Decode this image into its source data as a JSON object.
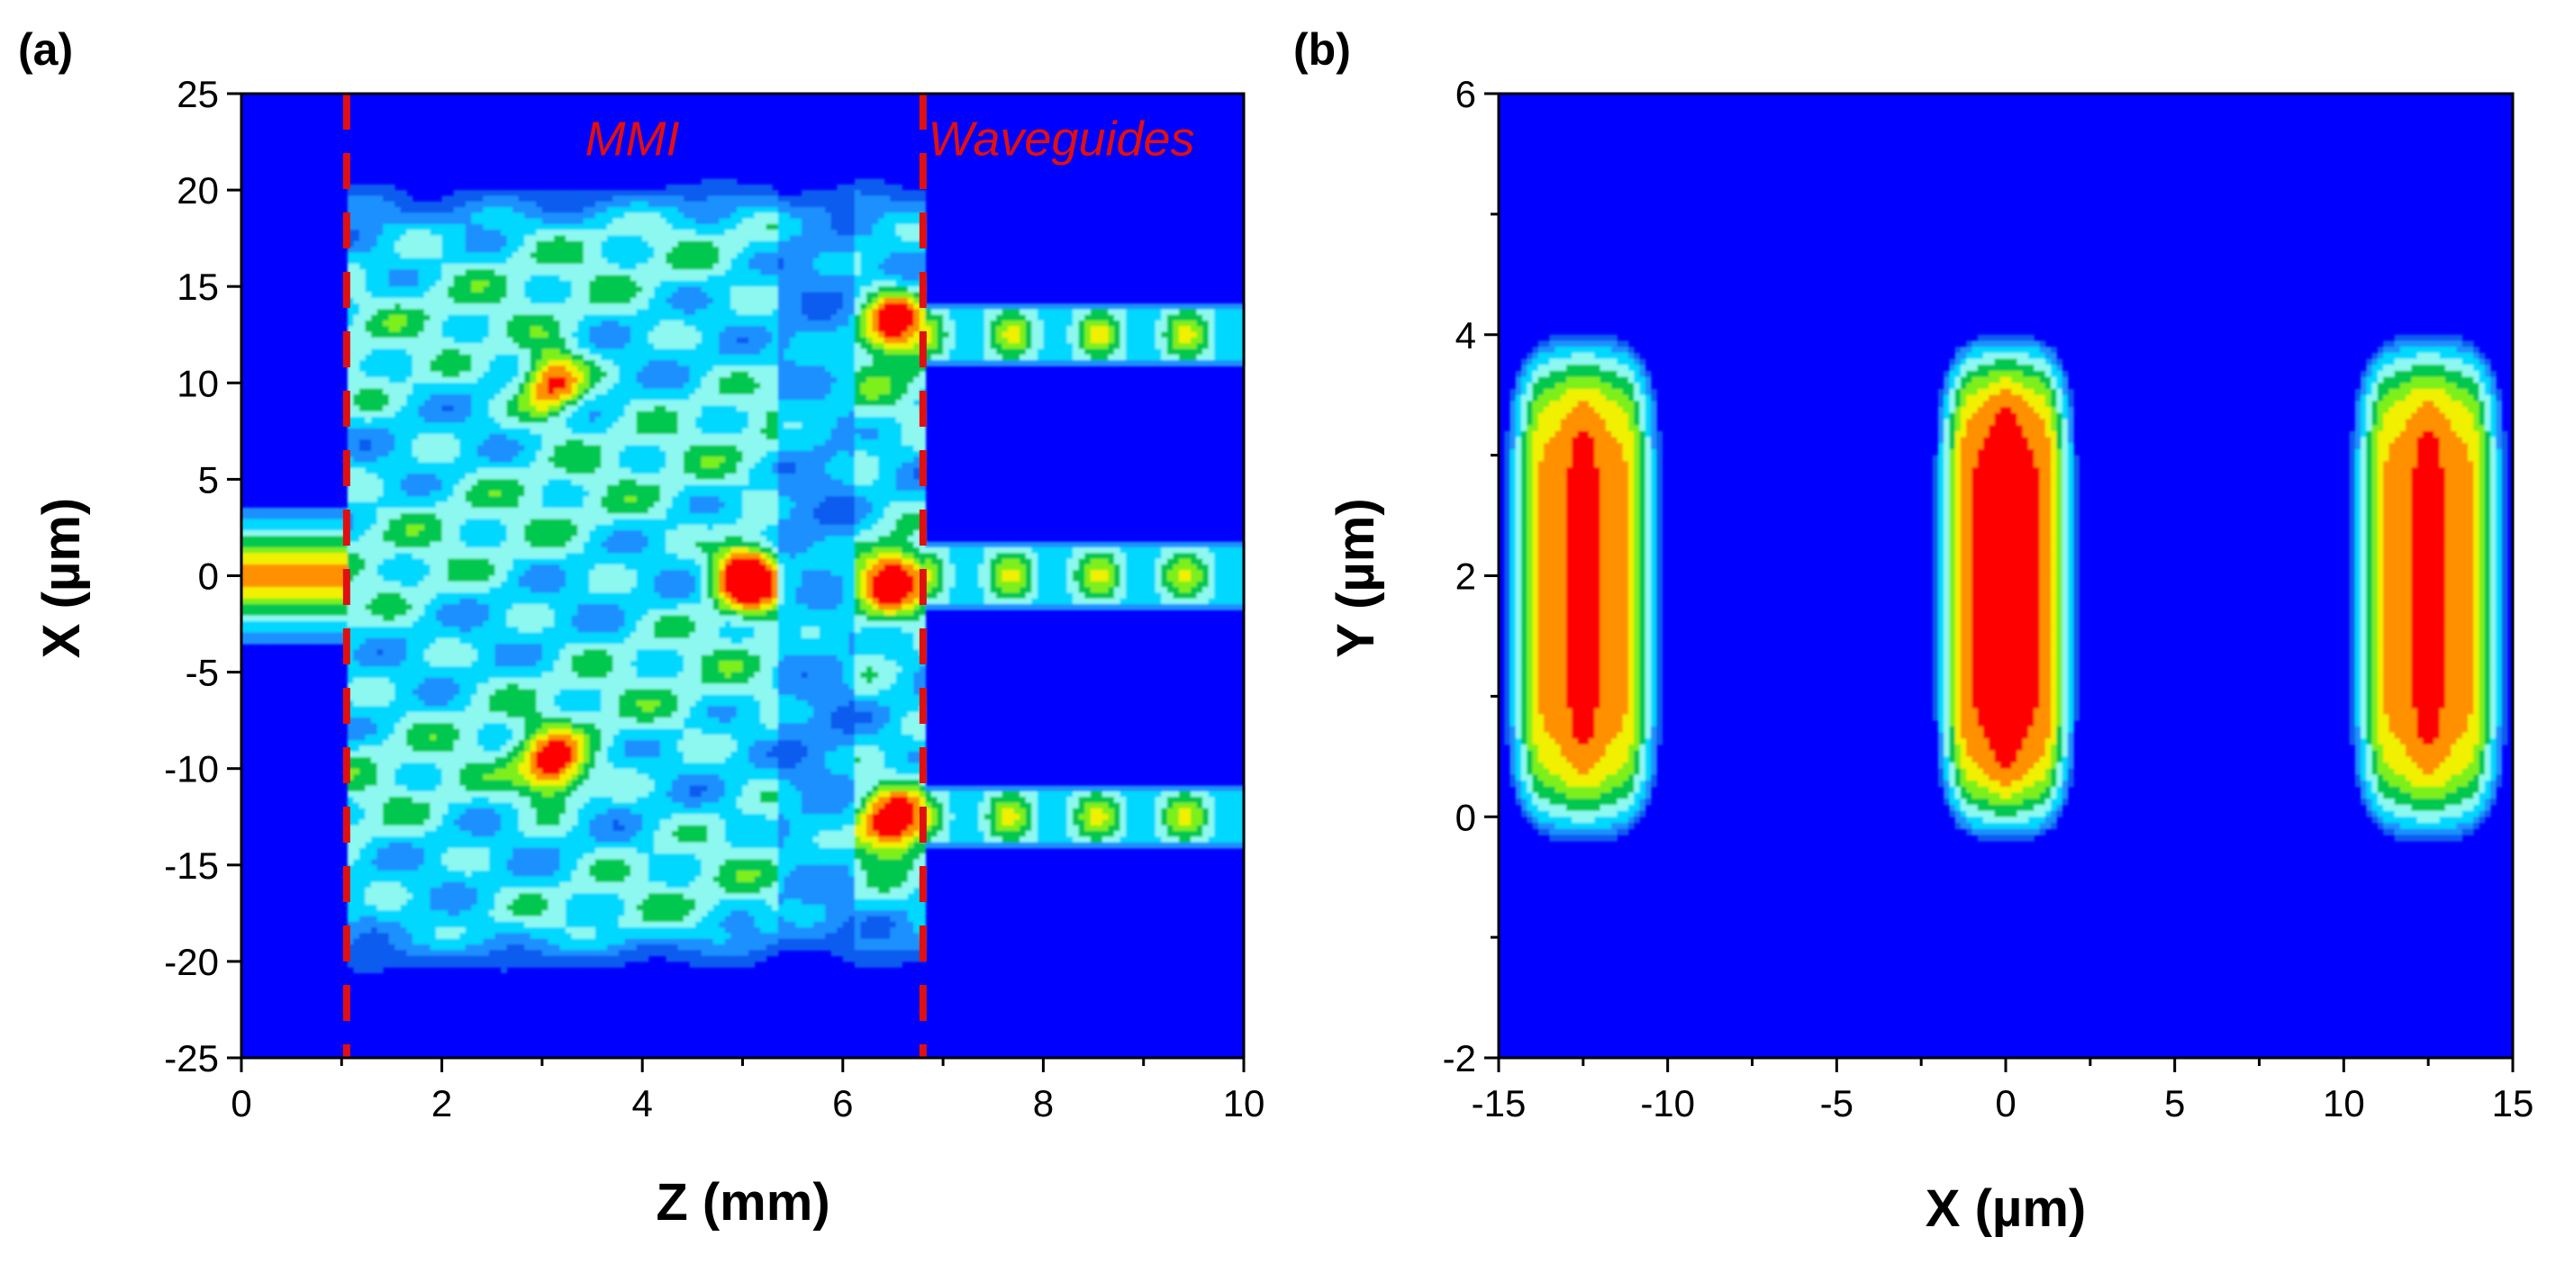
{
  "chart_data": [
    {
      "panel_label": "(a)",
      "type": "heatmap",
      "subtype": "filled contour",
      "xlabel": "Z (mm)",
      "ylabel": "X (µm)",
      "xlim": [
        0,
        10
      ],
      "ylim": [
        -25,
        25
      ],
      "xticks": [
        0,
        2,
        4,
        6,
        8,
        10
      ],
      "yticks": [
        25,
        20,
        15,
        10,
        5,
        0,
        -5,
        -10,
        -15,
        -20,
        -25
      ],
      "grid": false,
      "colormap": [
        "#0000ff",
        "#0a5cf0",
        "#1e90ff",
        "#00d8ff",
        "#8cf8f0",
        "#00c850",
        "#7df01e",
        "#f0f000",
        "#ff9000",
        "#ff0000"
      ],
      "outline_color": "#000000",
      "annotations": [
        {
          "text": "MMI",
          "color": "#e01010"
        },
        {
          "text": "Waveguides",
          "color": "#e01010"
        }
      ],
      "boundaries": [
        {
          "z": 1.05,
          "style": "dashed",
          "color": "#e01010"
        },
        {
          "z": 6.8,
          "style": "dashed",
          "color": "#e01010"
        }
      ],
      "regions": {
        "input_waveguide": {
          "z": [
            0,
            1.05
          ],
          "x": [
            -3.5,
            3.5
          ]
        },
        "mmi": {
          "z": [
            1.05,
            6.8
          ],
          "x": [
            -19.5,
            19.5
          ]
        },
        "output_waveguides_x": [
          12.5,
          0,
          -12.5
        ]
      },
      "hotspots": [
        {
          "z": 3.1,
          "x": 10,
          "level": 6
        },
        {
          "z": 3.1,
          "x": -10,
          "level": 6
        },
        {
          "z": 5.05,
          "x": 0,
          "level": 9
        },
        {
          "z": 6.5,
          "x": 13,
          "level": 6
        },
        {
          "z": 6.5,
          "x": 0,
          "level": 6
        },
        {
          "z": 6.5,
          "x": -13,
          "level": 6
        }
      ]
    },
    {
      "panel_label": "(b)",
      "type": "heatmap",
      "subtype": "filled contour",
      "xlabel": "X (µm)",
      "ylabel": "Y (µm)",
      "xlim": [
        -15,
        15
      ],
      "ylim": [
        -2,
        6
      ],
      "xticks": [
        -15,
        -10,
        -5,
        0,
        5,
        10,
        15
      ],
      "yticks": [
        6,
        4,
        2,
        0,
        -2
      ],
      "grid": false,
      "spots": [
        {
          "x_center": -12.5,
          "y_center": 2,
          "x_half_width": 2.3,
          "y_extent": [
            -0.2,
            4.0
          ],
          "peak_level": 8
        },
        {
          "x_center": 0,
          "y_center": 2,
          "x_half_width": 2.1,
          "y_extent": [
            -0.2,
            4.0
          ],
          "peak_level": 9
        },
        {
          "x_center": 12.5,
          "y_center": 2,
          "x_half_width": 2.3,
          "y_extent": [
            -0.2,
            4.0
          ],
          "peak_level": 8
        }
      ]
    }
  ]
}
